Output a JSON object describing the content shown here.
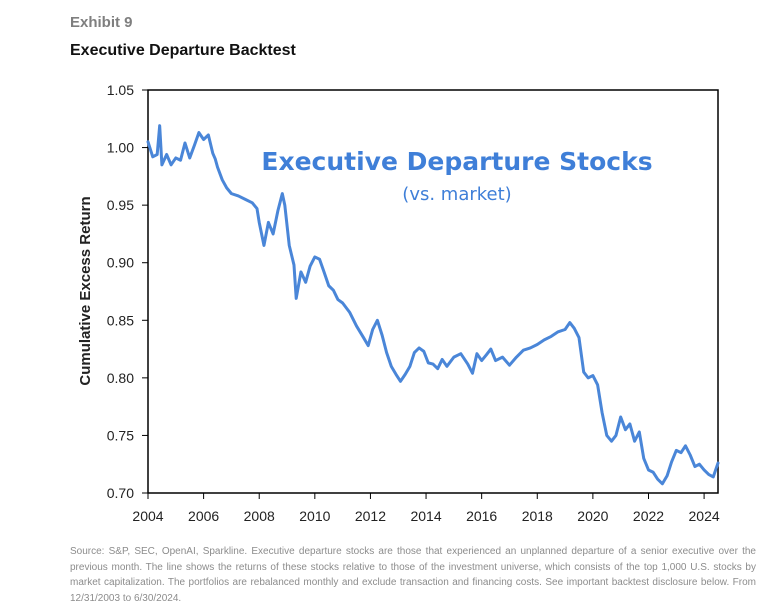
{
  "exhibit_label": "Exhibit 9",
  "chart_data": {
    "type": "line",
    "title": "Executive Departure Backtest",
    "annotation_title": "Executive Departure Stocks",
    "annotation_subtitle": "(vs. market)",
    "xlabel": "",
    "ylabel": "Cumulative Excess Return",
    "xlim": [
      2004,
      2024.5
    ],
    "ylim": [
      0.7,
      1.05
    ],
    "xticks": [
      "2004",
      "2006",
      "2008",
      "2010",
      "2012",
      "2014",
      "2016",
      "2018",
      "2020",
      "2022",
      "2024"
    ],
    "yticks": [
      "0.70",
      "0.75",
      "0.80",
      "0.85",
      "0.90",
      "0.95",
      "1.00",
      "1.05"
    ],
    "grid": false,
    "line_color": "#4a86d8",
    "series": [
      {
        "name": "Executive Departure Stocks (vs. market)",
        "x": [
          2004.0,
          2004.17,
          2004.33,
          2004.42,
          2004.5,
          2004.67,
          2004.83,
          2005.0,
          2005.17,
          2005.33,
          2005.5,
          2005.67,
          2005.83,
          2006.0,
          2006.17,
          2006.33,
          2006.42,
          2006.5,
          2006.67,
          2006.83,
          2007.0,
          2007.25,
          2007.5,
          2007.75,
          2007.92,
          2008.0,
          2008.17,
          2008.33,
          2008.5,
          2008.67,
          2008.83,
          2008.92,
          2009.08,
          2009.25,
          2009.33,
          2009.5,
          2009.67,
          2009.83,
          2010.0,
          2010.17,
          2010.33,
          2010.5,
          2010.67,
          2010.83,
          2011.0,
          2011.25,
          2011.5,
          2011.75,
          2011.92,
          2012.08,
          2012.25,
          2012.42,
          2012.58,
          2012.75,
          2012.92,
          2013.08,
          2013.25,
          2013.42,
          2013.58,
          2013.75,
          2013.92,
          2014.08,
          2014.25,
          2014.42,
          2014.58,
          2014.75,
          2015.0,
          2015.25,
          2015.5,
          2015.67,
          2015.83,
          2016.0,
          2016.17,
          2016.33,
          2016.5,
          2016.75,
          2017.0,
          2017.25,
          2017.5,
          2017.75,
          2018.0,
          2018.25,
          2018.5,
          2018.75,
          2019.0,
          2019.17,
          2019.33,
          2019.5,
          2019.67,
          2019.83,
          2020.0,
          2020.17,
          2020.33,
          2020.5,
          2020.67,
          2020.83,
          2021.0,
          2021.17,
          2021.33,
          2021.5,
          2021.67,
          2021.83,
          2022.0,
          2022.17,
          2022.33,
          2022.5,
          2022.67,
          2022.83,
          2023.0,
          2023.17,
          2023.33,
          2023.5,
          2023.67,
          2023.83,
          2024.0,
          2024.17,
          2024.33,
          2024.5
        ],
        "y": [
          1.005,
          0.992,
          0.994,
          1.019,
          0.985,
          0.994,
          0.985,
          0.991,
          0.989,
          1.004,
          0.991,
          1.002,
          1.013,
          1.007,
          1.011,
          0.995,
          0.99,
          0.983,
          0.972,
          0.965,
          0.96,
          0.958,
          0.955,
          0.952,
          0.947,
          0.935,
          0.915,
          0.935,
          0.925,
          0.945,
          0.96,
          0.95,
          0.915,
          0.898,
          0.869,
          0.892,
          0.883,
          0.897,
          0.905,
          0.903,
          0.892,
          0.88,
          0.876,
          0.868,
          0.865,
          0.857,
          0.845,
          0.835,
          0.828,
          0.842,
          0.85,
          0.837,
          0.822,
          0.81,
          0.803,
          0.797,
          0.803,
          0.81,
          0.822,
          0.826,
          0.823,
          0.813,
          0.812,
          0.808,
          0.816,
          0.81,
          0.818,
          0.821,
          0.812,
          0.804,
          0.821,
          0.815,
          0.82,
          0.825,
          0.815,
          0.818,
          0.811,
          0.818,
          0.824,
          0.826,
          0.829,
          0.833,
          0.836,
          0.84,
          0.842,
          0.848,
          0.843,
          0.835,
          0.805,
          0.8,
          0.802,
          0.794,
          0.77,
          0.75,
          0.745,
          0.75,
          0.766,
          0.755,
          0.76,
          0.745,
          0.753,
          0.73,
          0.72,
          0.718,
          0.712,
          0.708,
          0.715,
          0.727,
          0.737,
          0.735,
          0.741,
          0.733,
          0.723,
          0.725,
          0.72,
          0.716,
          0.714,
          0.726
        ]
      }
    ]
  },
  "footnote": "Source: S&P, SEC, OpenAI, Sparkline. Executive departure stocks are those that  experienced an unplanned departure of a senior executive over the previous month. The line shows the returns of these stocks relative to those of the investment universe, which consists of the top 1,000 U.S. stocks by market capitalization. The portfolios are rebalanced monthly and exclude transaction and financing costs. See important backtest disclosure below. From 12/31/2003 to 6/30/2024."
}
